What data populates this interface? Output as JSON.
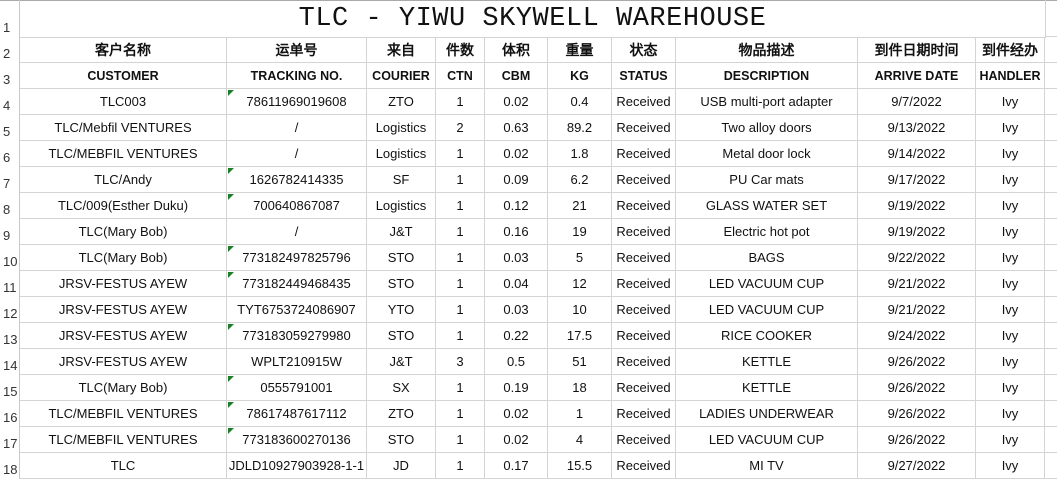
{
  "title": "TLC  - YIWU SKYWELL WAREHOUSE",
  "row_numbers": [
    "1",
    "2",
    "3",
    "4",
    "5",
    "6",
    "7",
    "8",
    "9",
    "10",
    "11",
    "12",
    "13",
    "14",
    "15",
    "16",
    "17",
    "18"
  ],
  "headers_cn": [
    "客户名称",
    "运单号",
    "来自",
    "件数",
    "体积",
    "重量",
    "状态",
    "物品描述",
    "到件日期时间",
    "到件经办"
  ],
  "headers_en": [
    "CUSTOMER",
    "TRACKING NO.",
    "COURIER",
    "CTN",
    "CBM",
    "KG",
    "STATUS",
    "DESCRIPTION",
    "ARRIVE DATE",
    "HANDLER"
  ],
  "rows": [
    {
      "cells": [
        "TLC003",
        "78611969019608",
        "ZTO",
        "1",
        "0.02",
        "0.4",
        "Received",
        "USB multi-port adapter",
        "9/7/2022",
        "Ivy"
      ],
      "number_as_text": true
    },
    {
      "cells": [
        "TLC/Mebfil VENTURES",
        "/",
        "Logistics",
        "2",
        "0.63",
        "89.2",
        "Received",
        "Two alloy doors",
        "9/13/2022",
        "Ivy"
      ],
      "number_as_text": false
    },
    {
      "cells": [
        "TLC/MEBFIL VENTURES",
        "/",
        "Logistics",
        "1",
        "0.02",
        "1.8",
        "Received",
        "Metal door lock",
        "9/14/2022",
        "Ivy"
      ],
      "number_as_text": false
    },
    {
      "cells": [
        "TLC/Andy",
        "1626782414335",
        "SF",
        "1",
        "0.09",
        "6.2",
        "Received",
        "PU Car mats",
        "9/17/2022",
        "Ivy"
      ],
      "number_as_text": true
    },
    {
      "cells": [
        "TLC/009(Esther Duku)",
        "700640867087",
        "Logistics",
        "1",
        "0.12",
        "21",
        "Received",
        "GLASS WATER SET",
        "9/19/2022",
        "Ivy"
      ],
      "number_as_text": true
    },
    {
      "cells": [
        "TLC(Mary Bob)",
        "/",
        "J&T",
        "1",
        "0.16",
        "19",
        "Received",
        "Electric hot pot",
        "9/19/2022",
        "Ivy"
      ],
      "number_as_text": false
    },
    {
      "cells": [
        "TLC(Mary Bob)",
        "773182497825796",
        "STO",
        "1",
        "0.03",
        "5",
        "Received",
        "BAGS",
        "9/22/2022",
        "Ivy"
      ],
      "number_as_text": true
    },
    {
      "cells": [
        "JRSV-FESTUS AYEW",
        "773182449468435",
        "STO",
        "1",
        "0.04",
        "12",
        "Received",
        "LED VACUUM CUP",
        "9/21/2022",
        "Ivy"
      ],
      "number_as_text": true
    },
    {
      "cells": [
        "JRSV-FESTUS AYEW",
        "TYT6753724086907",
        "YTO",
        "1",
        "0.03",
        "10",
        "Received",
        "LED VACUUM CUP",
        "9/21/2022",
        "Ivy"
      ],
      "number_as_text": false
    },
    {
      "cells": [
        "JRSV-FESTUS AYEW",
        "773183059279980",
        "STO",
        "1",
        "0.22",
        "17.5",
        "Received",
        "RICE COOKER",
        "9/24/2022",
        "Ivy"
      ],
      "number_as_text": true
    },
    {
      "cells": [
        "JRSV-FESTUS AYEW",
        "WPLT210915W",
        "J&T",
        "3",
        "0.5",
        "51",
        "Received",
        "KETTLE",
        "9/26/2022",
        "Ivy"
      ],
      "number_as_text": false
    },
    {
      "cells": [
        "TLC(Mary Bob)",
        "0555791001",
        "SX",
        "1",
        "0.19",
        "18",
        "Received",
        "KETTLE",
        "9/26/2022",
        "Ivy"
      ],
      "number_as_text": true
    },
    {
      "cells": [
        "TLC/MEBFIL VENTURES",
        "78617487617112",
        "ZTO",
        "1",
        "0.02",
        "1",
        "Received",
        "LADIES UNDERWEAR",
        "9/26/2022",
        "Ivy"
      ],
      "number_as_text": true
    },
    {
      "cells": [
        "TLC/MEBFIL VENTURES",
        "773183600270136",
        "STO",
        "1",
        "0.02",
        "4",
        "Received",
        "LED VACUUM CUP",
        "9/26/2022",
        "Ivy"
      ],
      "number_as_text": true
    },
    {
      "cells": [
        "TLC",
        "JDLD10927903928-1-1",
        "JD",
        "1",
        "0.17",
        "15.5",
        "Received",
        "MI TV",
        "9/27/2022",
        "Ivy"
      ],
      "number_as_text": false
    }
  ],
  "colors": {
    "grid": "#d4d4d4",
    "warning_triangle": "#1d7d2a"
  }
}
